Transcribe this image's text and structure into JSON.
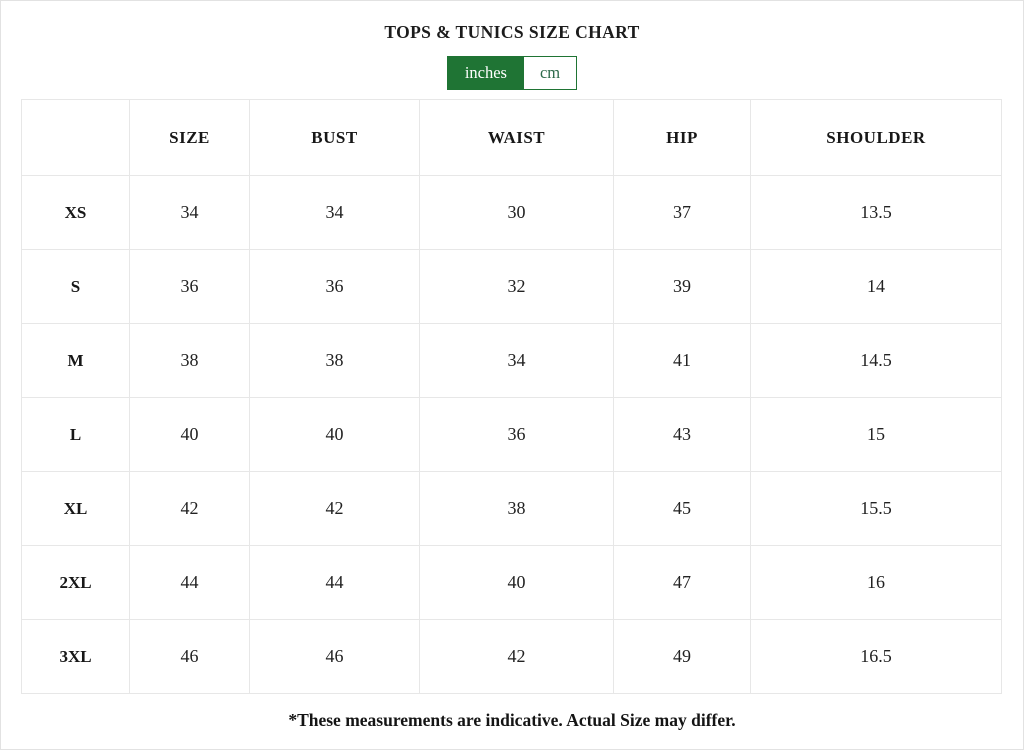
{
  "page": {
    "title": "TOPS & TUNICS SIZE CHART",
    "footnote": "*These measurements are indicative. Actual Size may differ."
  },
  "unit_toggle": {
    "selected": "inches",
    "options": [
      {
        "label": "inches",
        "selected": true
      },
      {
        "label": "cm",
        "selected": false
      }
    ]
  },
  "colors": {
    "accent_green": "#1f7434",
    "inactive_text_green": "#2d6a4a",
    "table_border": "#e7e7e7",
    "text_dark": "#1c1c1c",
    "page_border": "#e2e2e2"
  },
  "table": {
    "headers": [
      "",
      "SIZE",
      "BUST",
      "WAIST",
      "HIP",
      "SHOULDER"
    ],
    "rows": [
      {
        "label": "XS",
        "size": "34",
        "bust": "34",
        "waist": "30",
        "hip": "37",
        "shoulder": "13.5"
      },
      {
        "label": "S",
        "size": "36",
        "bust": "36",
        "waist": "32",
        "hip": "39",
        "shoulder": "14"
      },
      {
        "label": "M",
        "size": "38",
        "bust": "38",
        "waist": "34",
        "hip": "41",
        "shoulder": "14.5"
      },
      {
        "label": "L",
        "size": "40",
        "bust": "40",
        "waist": "36",
        "hip": "43",
        "shoulder": "15"
      },
      {
        "label": "XL",
        "size": "42",
        "bust": "42",
        "waist": "38",
        "hip": "45",
        "shoulder": "15.5"
      },
      {
        "label": "2XL",
        "size": "44",
        "bust": "44",
        "waist": "40",
        "hip": "47",
        "shoulder": "16"
      },
      {
        "label": "3XL",
        "size": "46",
        "bust": "46",
        "waist": "42",
        "hip": "49",
        "shoulder": "16.5"
      }
    ]
  }
}
